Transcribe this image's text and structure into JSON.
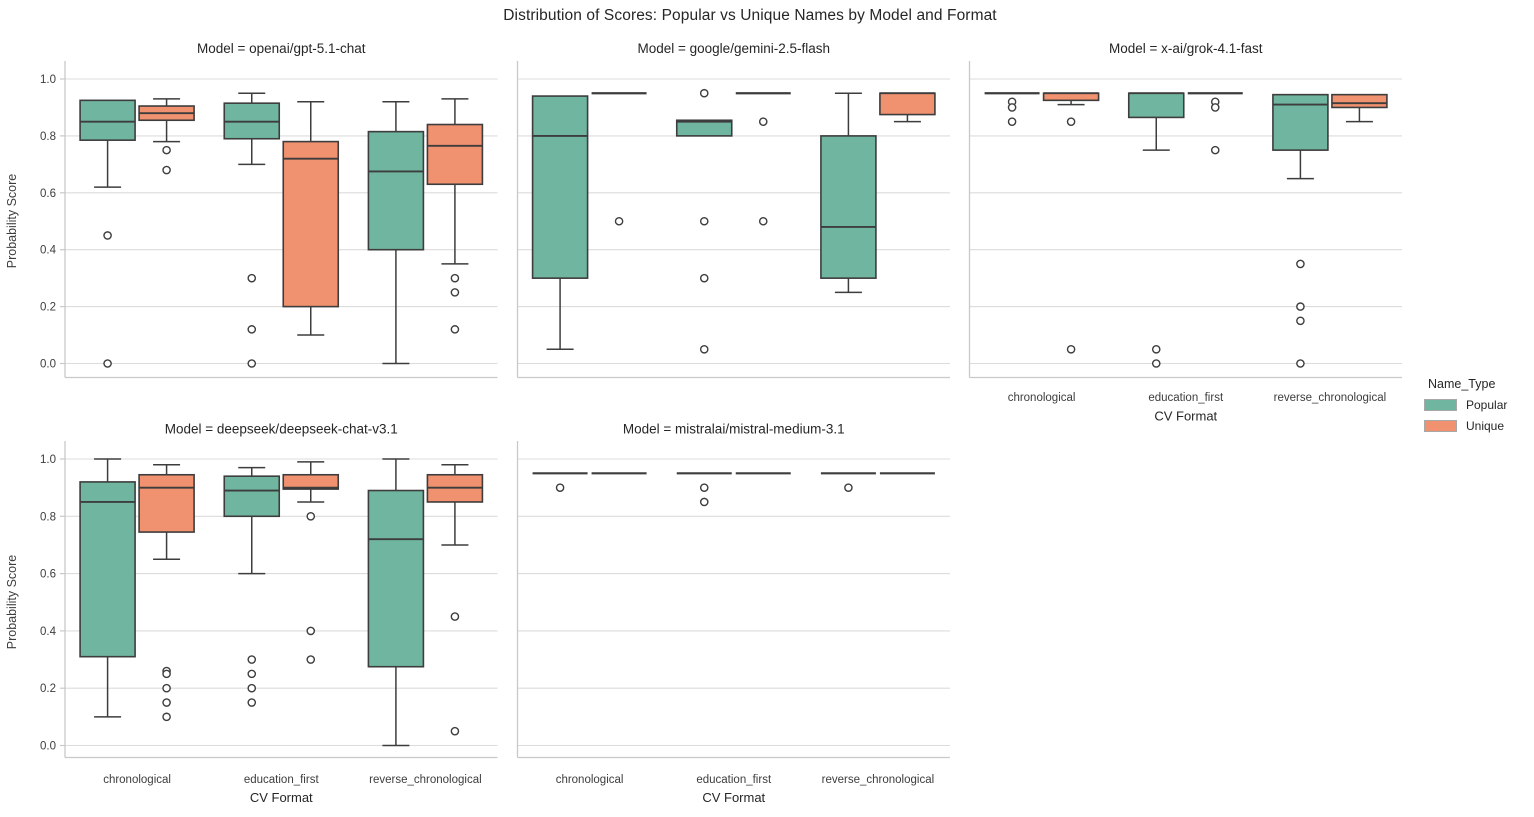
{
  "figure": {
    "title": "Distribution of Scores: Popular vs Unique Names by Model and Format",
    "ylabel": "Probability Score",
    "xlabel": "CV Format",
    "legend": {
      "title": "Name_Type",
      "items": [
        {
          "label": "Popular",
          "color": "#6fb59f"
        },
        {
          "label": "Unique",
          "color": "#f0916f"
        }
      ]
    }
  },
  "style": {
    "box_edge": "#3d3d3d",
    "grid": "#dcdcdc",
    "spine": "#c9c9c9",
    "title_text": "#262626",
    "tick_text": "#3d3d3d",
    "outlier_fill": "#ffffff"
  },
  "chart_data": {
    "type": "grouped-boxplot-facets",
    "ylim": [
      0.0,
      1.0
    ],
    "grid": "horizontal",
    "legend_position": "right-of-grid",
    "y_ticks": [
      "1.0",
      "0.8",
      "0.6",
      "0.4",
      "0.2",
      "0.0"
    ],
    "categories": [
      "chronological",
      "education_first",
      "reverse_chronological"
    ],
    "series": [
      "Popular",
      "Unique"
    ],
    "facets": [
      {
        "title": "Model = openai/gpt-5.1-chat",
        "row": 0,
        "col": 0,
        "show_x_labels": false,
        "show_y_labels": true,
        "groups": [
          {
            "category": "chronological",
            "boxes": [
              {
                "series": "Popular",
                "whislo": 0.62,
                "q1": 0.785,
                "med": 0.85,
                "q3": 0.925,
                "whishi": 0.93,
                "fliers": [
                  0.45,
                  0.0
                ]
              },
              {
                "series": "Unique",
                "whislo": 0.78,
                "q1": 0.855,
                "med": 0.88,
                "q3": 0.905,
                "whishi": 0.93,
                "fliers": [
                  0.75,
                  0.68
                ]
              }
            ]
          },
          {
            "category": "education_first",
            "boxes": [
              {
                "series": "Popular",
                "whislo": 0.7,
                "q1": 0.79,
                "med": 0.85,
                "q3": 0.915,
                "whishi": 0.95,
                "fliers": [
                  0.3,
                  0.12,
                  0.0
                ]
              },
              {
                "series": "Unique",
                "whislo": 0.1,
                "q1": 0.2,
                "med": 0.72,
                "q3": 0.78,
                "whishi": 0.92,
                "fliers": []
              }
            ]
          },
          {
            "category": "reverse_chronological",
            "boxes": [
              {
                "series": "Popular",
                "whislo": 0.0,
                "q1": 0.4,
                "med": 0.675,
                "q3": 0.815,
                "whishi": 0.92,
                "fliers": []
              },
              {
                "series": "Unique",
                "whislo": 0.35,
                "q1": 0.63,
                "med": 0.765,
                "q3": 0.84,
                "whishi": 0.93,
                "fliers": [
                  0.3,
                  0.25,
                  0.12
                ]
              }
            ]
          }
        ]
      },
      {
        "title": "Model = google/gemini-2.5-flash",
        "row": 0,
        "col": 1,
        "show_x_labels": false,
        "show_y_labels": false,
        "groups": [
          {
            "category": "chronological",
            "boxes": [
              {
                "series": "Popular",
                "whislo": 0.05,
                "q1": 0.3,
                "med": 0.8,
                "q3": 0.94,
                "whishi": 0.945,
                "fliers": []
              },
              {
                "series": "Unique",
                "whislo": 0.95,
                "q1": 0.95,
                "med": 0.95,
                "q3": 0.95,
                "whishi": 0.95,
                "fliers": [
                  0.5
                ]
              }
            ]
          },
          {
            "category": "education_first",
            "boxes": [
              {
                "series": "Popular",
                "whislo": 0.8,
                "q1": 0.8,
                "med": 0.85,
                "q3": 0.855,
                "whishi": 0.855,
                "fliers": [
                  0.95,
                  0.5,
                  0.3,
                  0.05
                ]
              },
              {
                "series": "Unique",
                "whislo": 0.95,
                "q1": 0.95,
                "med": 0.95,
                "q3": 0.95,
                "whishi": 0.95,
                "fliers": [
                  0.85,
                  0.5
                ]
              }
            ]
          },
          {
            "category": "reverse_chronological",
            "boxes": [
              {
                "series": "Popular",
                "whislo": 0.25,
                "q1": 0.3,
                "med": 0.48,
                "q3": 0.8,
                "whishi": 0.95,
                "fliers": []
              },
              {
                "series": "Unique",
                "whislo": 0.85,
                "q1": 0.875,
                "med": 0.95,
                "q3": 0.95,
                "whishi": 0.95,
                "fliers": []
              }
            ]
          }
        ]
      },
      {
        "title": "Model = x-ai/grok-4.1-fast",
        "row": 0,
        "col": 2,
        "show_x_labels": true,
        "show_y_labels": false,
        "groups": [
          {
            "category": "chronological",
            "boxes": [
              {
                "series": "Popular",
                "whislo": 0.95,
                "q1": 0.95,
                "med": 0.95,
                "q3": 0.95,
                "whishi": 0.95,
                "fliers": [
                  0.92,
                  0.9,
                  0.85
                ]
              },
              {
                "series": "Unique",
                "whislo": 0.91,
                "q1": 0.925,
                "med": 0.95,
                "q3": 0.95,
                "whishi": 0.95,
                "fliers": [
                  0.85,
                  0.05
                ]
              }
            ]
          },
          {
            "category": "education_first",
            "boxes": [
              {
                "series": "Popular",
                "whislo": 0.75,
                "q1": 0.865,
                "med": 0.95,
                "q3": 0.95,
                "whishi": 0.95,
                "fliers": [
                  0.05,
                  0.0
                ]
              },
              {
                "series": "Unique",
                "whislo": 0.95,
                "q1": 0.95,
                "med": 0.95,
                "q3": 0.95,
                "whishi": 0.95,
                "fliers": [
                  0.92,
                  0.9,
                  0.75
                ]
              }
            ]
          },
          {
            "category": "reverse_chronological",
            "boxes": [
              {
                "series": "Popular",
                "whislo": 0.65,
                "q1": 0.75,
                "med": 0.91,
                "q3": 0.945,
                "whishi": 0.95,
                "fliers": [
                  0.35,
                  0.2,
                  0.15,
                  0.0
                ]
              },
              {
                "series": "Unique",
                "whislo": 0.85,
                "q1": 0.9,
                "med": 0.915,
                "q3": 0.945,
                "whishi": 0.95,
                "fliers": []
              }
            ]
          }
        ]
      },
      {
        "title": "Model = deepseek/deepseek-chat-v3.1",
        "row": 1,
        "col": 0,
        "show_x_labels": true,
        "show_y_labels": true,
        "groups": [
          {
            "category": "chronological",
            "boxes": [
              {
                "series": "Popular",
                "whislo": 0.1,
                "q1": 0.31,
                "med": 0.85,
                "q3": 0.92,
                "whishi": 1.0,
                "fliers": []
              },
              {
                "series": "Unique",
                "whislo": 0.65,
                "q1": 0.745,
                "med": 0.9,
                "q3": 0.945,
                "whishi": 0.98,
                "fliers": [
                  0.26,
                  0.25,
                  0.2,
                  0.15,
                  0.1
                ]
              }
            ]
          },
          {
            "category": "education_first",
            "boxes": [
              {
                "series": "Popular",
                "whislo": 0.6,
                "q1": 0.8,
                "med": 0.89,
                "q3": 0.94,
                "whishi": 0.97,
                "fliers": [
                  0.3,
                  0.25,
                  0.2,
                  0.15
                ]
              },
              {
                "series": "Unique",
                "whislo": 0.85,
                "q1": 0.895,
                "med": 0.9,
                "q3": 0.945,
                "whishi": 0.99,
                "fliers": [
                  0.8,
                  0.4,
                  0.3
                ]
              }
            ]
          },
          {
            "category": "reverse_chronological",
            "boxes": [
              {
                "series": "Popular",
                "whislo": 0.0,
                "q1": 0.275,
                "med": 0.72,
                "q3": 0.89,
                "whishi": 1.0,
                "fliers": []
              },
              {
                "series": "Unique",
                "whislo": 0.7,
                "q1": 0.85,
                "med": 0.9,
                "q3": 0.945,
                "whishi": 0.98,
                "fliers": [
                  0.45,
                  0.05
                ]
              }
            ]
          }
        ]
      },
      {
        "title": "Model = mistralai/mistral-medium-3.1",
        "row": 1,
        "col": 1,
        "show_x_labels": true,
        "show_y_labels": false,
        "groups": [
          {
            "category": "chronological",
            "boxes": [
              {
                "series": "Popular",
                "whislo": 0.95,
                "q1": 0.95,
                "med": 0.95,
                "q3": 0.95,
                "whishi": 0.95,
                "fliers": [
                  0.9
                ]
              },
              {
                "series": "Unique",
                "whislo": 0.95,
                "q1": 0.95,
                "med": 0.95,
                "q3": 0.95,
                "whishi": 0.95,
                "fliers": []
              }
            ]
          },
          {
            "category": "education_first",
            "boxes": [
              {
                "series": "Popular",
                "whislo": 0.95,
                "q1": 0.95,
                "med": 0.95,
                "q3": 0.95,
                "whishi": 0.95,
                "fliers": [
                  0.9,
                  0.85
                ]
              },
              {
                "series": "Unique",
                "whislo": 0.95,
                "q1": 0.95,
                "med": 0.95,
                "q3": 0.95,
                "whishi": 0.95,
                "fliers": []
              }
            ]
          },
          {
            "category": "reverse_chronological",
            "boxes": [
              {
                "series": "Popular",
                "whislo": 0.95,
                "q1": 0.95,
                "med": 0.95,
                "q3": 0.95,
                "whishi": 0.95,
                "fliers": [
                  0.9
                ]
              },
              {
                "series": "Unique",
                "whislo": 0.95,
                "q1": 0.95,
                "med": 0.95,
                "q3": 0.95,
                "whishi": 0.95,
                "fliers": []
              }
            ]
          }
        ]
      }
    ]
  }
}
